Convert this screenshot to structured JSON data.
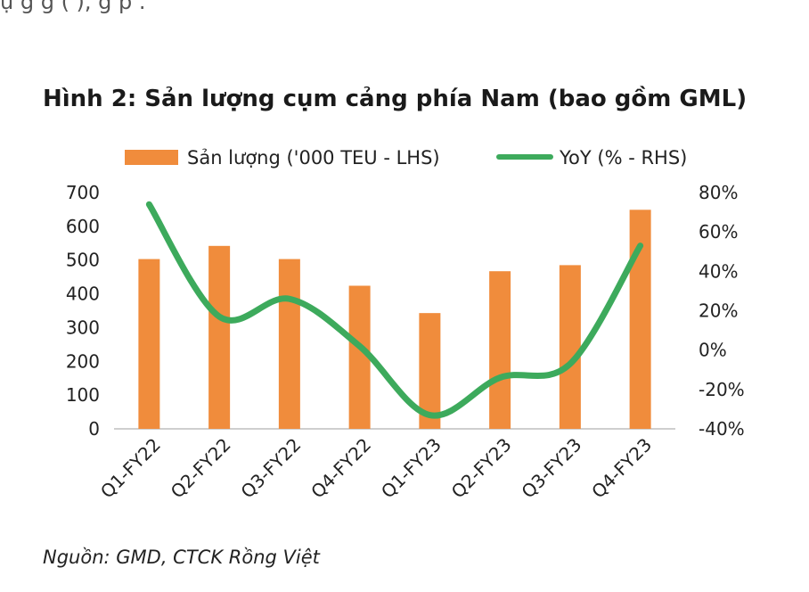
{
  "top_text": "ụ g         g                               (             ),  g  p              .",
  "chart_data": {
    "type": "bar",
    "title": "Hình 2: Sản lượng cụm cảng phía Nam (bao gồm GML)",
    "categories": [
      "Q1-FY22",
      "Q2-FY22",
      "Q3-FY22",
      "Q4-FY22",
      "Q1-FY23",
      "Q2-FY23",
      "Q3-FY23",
      "Q4-FY23"
    ],
    "series": [
      {
        "name": "Sản lượng ('000 TEU - LHS)",
        "type": "bar",
        "axis": "left",
        "color": "#f08c3c",
        "values": [
          503,
          542,
          503,
          424,
          343,
          467,
          485,
          649
        ]
      },
      {
        "name": "YoY (% - RHS)",
        "type": "line",
        "axis": "right",
        "color": "#3daa5c",
        "values": [
          74,
          17,
          26,
          2,
          -33,
          -14,
          -7,
          53
        ]
      }
    ],
    "y_left": {
      "min": 0,
      "max": 700,
      "ticks": [
        "0",
        "100",
        "200",
        "300",
        "400",
        "500",
        "600",
        "700"
      ]
    },
    "y_right": {
      "min": -40,
      "max": 80,
      "ticks": [
        "-40%",
        "-20%",
        "0%",
        "20%",
        "40%",
        "60%",
        "80%"
      ]
    },
    "grid": false,
    "legend_position": "top"
  },
  "source": "Nguồn: GMD, CTCK Rồng Việt"
}
